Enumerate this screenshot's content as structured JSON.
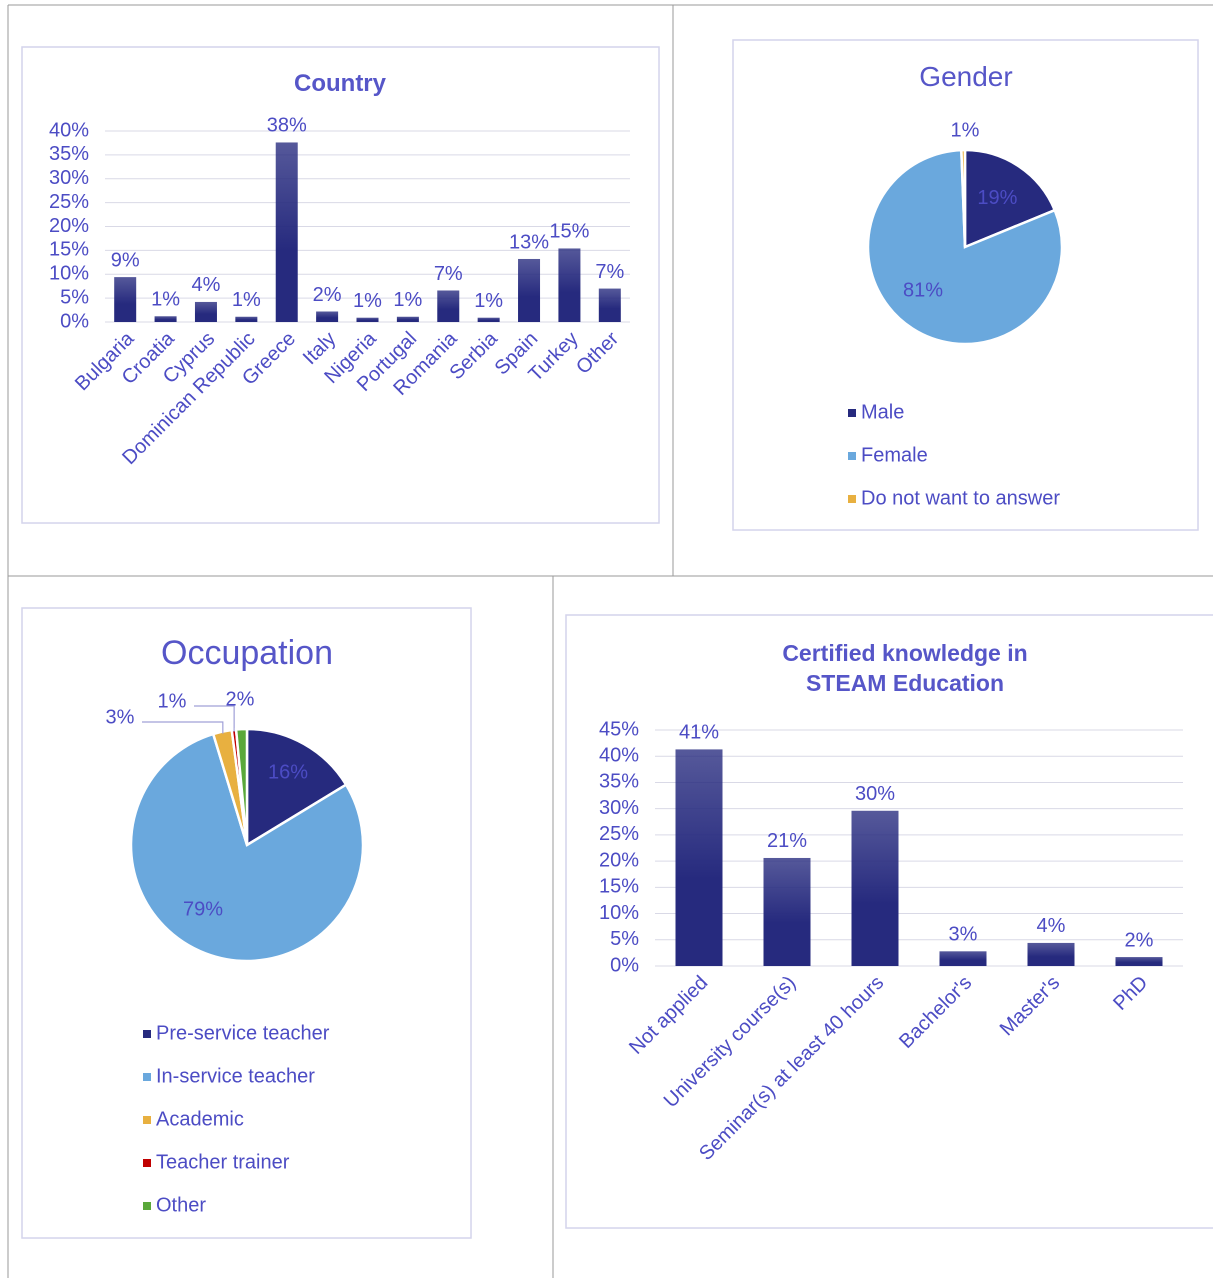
{
  "chart_data": [
    {
      "type": "bar",
      "title": "Country",
      "categories": [
        "Bulgaria",
        "Croatia",
        "Cyprus",
        "Dominican Republic",
        "Greece",
        "Italy",
        "Nigeria",
        "Portugal",
        "Romania",
        "Serbia",
        "Spain",
        "Turkey",
        "Other"
      ],
      "values": [
        9.4,
        1.2,
        4.2,
        1.1,
        37.6,
        2.2,
        0.9,
        1.1,
        6.6,
        0.9,
        13.2,
        15.4,
        7.0
      ],
      "value_labels": [
        "9%",
        "1%",
        "4%",
        "1%",
        "38%",
        "2%",
        "1%",
        "1%",
        "7%",
        "1%",
        "13%",
        "15%",
        "7%"
      ],
      "color": "#262a7e",
      "ylim": [
        0,
        40
      ],
      "yticks": [
        {
          "value": 0,
          "label": "0%"
        },
        {
          "value": 5,
          "label": "5%"
        },
        {
          "value": 10,
          "label": "10%"
        },
        {
          "value": 15,
          "label": "15%"
        },
        {
          "value": 20,
          "label": "20%"
        },
        {
          "value": 25,
          "label": "25%"
        },
        {
          "value": 30,
          "label": "30%"
        },
        {
          "value": 35,
          "label": "35%"
        },
        {
          "value": 40,
          "label": "40%"
        }
      ],
      "grid": true
    },
    {
      "type": "pie",
      "title": "Gender",
      "categories": [
        "Male",
        "Female",
        "Do not want to answer"
      ],
      "values": [
        18.8,
        80.6,
        0.6
      ],
      "value_labels": [
        "19%",
        "81%",
        "1%"
      ],
      "colors": [
        "#262a7e",
        "#6aa8dd",
        "#e8b040"
      ],
      "legend": "bottom"
    },
    {
      "type": "pie",
      "title": "Occupation",
      "categories": [
        "Pre-service teacher",
        "In-service teacher",
        "Academic",
        "Teacher trainer",
        "Other"
      ],
      "values": [
        16.3,
        79.0,
        2.6,
        0.6,
        1.5
      ],
      "value_labels": [
        "16%",
        "79%",
        "3%",
        "1%",
        "2%"
      ],
      "colors": [
        "#262a7e",
        "#6aa8dd",
        "#e8b040",
        "#c00000",
        "#5aa83a"
      ],
      "legend": "bottom"
    },
    {
      "type": "bar",
      "title": "Certified knowledge in STEAM Education",
      "categories": [
        "Not applied",
        "University course(s)",
        "Seminar(s) at least 40 hours",
        "Bachelor's",
        "Master's",
        "PhD"
      ],
      "values": [
        41.3,
        20.6,
        29.6,
        2.8,
        4.4,
        1.7
      ],
      "value_labels": [
        "41%",
        "21%",
        "30%",
        "3%",
        "4%",
        "2%"
      ],
      "color": "#262a7e",
      "ylim": [
        0,
        45
      ],
      "yticks": [
        {
          "value": 0,
          "label": "0%"
        },
        {
          "value": 5,
          "label": "5%"
        },
        {
          "value": 10,
          "label": "10%"
        },
        {
          "value": 15,
          "label": "15%"
        },
        {
          "value": 20,
          "label": "20%"
        },
        {
          "value": 25,
          "label": "25%"
        },
        {
          "value": 30,
          "label": "30%"
        },
        {
          "value": 35,
          "label": "35%"
        },
        {
          "value": 40,
          "label": "40%"
        },
        {
          "value": 45,
          "label": "45%"
        }
      ],
      "grid": true
    }
  ]
}
